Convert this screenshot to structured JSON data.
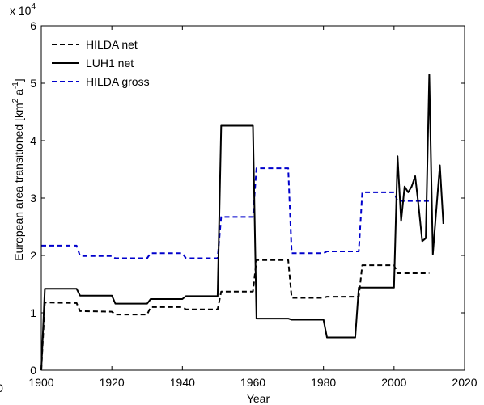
{
  "chart_data": {
    "type": "line",
    "title": "",
    "xlabel": "Year",
    "ylabel": "European area transitioned [km² a⁻¹]",
    "ylabel_main": "European area transitioned [km",
    "ylabel_sup1": "2",
    "ylabel_mid": " a",
    "ylabel_sup2": "-1",
    "ylabel_end": "]",
    "exponent_base": "x 10",
    "exponent_power": "4",
    "xlim": [
      1900,
      2020
    ],
    "ylim": [
      0,
      60000
    ],
    "x_ticks": [
      1900,
      1920,
      1940,
      1960,
      1980,
      2000,
      2020
    ],
    "x_tick_labels": [
      "1900",
      "1920",
      "1940",
      "1960",
      "1980",
      "2000",
      "2020"
    ],
    "y_ticks": [
      0,
      10000,
      20000,
      30000,
      40000,
      50000,
      60000
    ],
    "y_tick_labels": [
      "0",
      "1",
      "2",
      "3",
      "4",
      "5",
      "6"
    ],
    "left_edge_label": "0",
    "grid": false,
    "legend_position": "top-left",
    "series": [
      {
        "name": "HILDA net",
        "color": "#000000",
        "style": "dashed",
        "x": [
          1900,
          1901,
          1910,
          1911,
          1920,
          1921,
          1930,
          1931,
          1940,
          1941,
          1950,
          1951,
          1960,
          1961,
          1970,
          1971,
          1980,
          1981,
          1990,
          1991,
          2000,
          2001,
          2010
        ],
        "y": [
          0,
          11800,
          11700,
          10300,
          10200,
          9700,
          9700,
          11000,
          11000,
          10600,
          10600,
          13700,
          13700,
          19200,
          19200,
          12600,
          12600,
          12800,
          12800,
          18300,
          18300,
          16900,
          16900
        ]
      },
      {
        "name": "LUH1 net",
        "color": "#000000",
        "style": "solid",
        "x": [
          1900,
          1901,
          1910,
          1911,
          1920,
          1921,
          1930,
          1931,
          1940,
          1941,
          1950,
          1951,
          1960,
          1961,
          1970,
          1971,
          1980,
          1981,
          1989,
          1990,
          1999,
          2000,
          2001,
          2002,
          2003,
          2004,
          2005,
          2006,
          2007,
          2008,
          2009,
          2010,
          2011,
          2012,
          2013,
          2014
        ],
        "y": [
          0,
          14200,
          14200,
          13000,
          13000,
          11600,
          11600,
          12400,
          12400,
          12900,
          12900,
          42600,
          42600,
          9000,
          9000,
          8800,
          8800,
          5700,
          5700,
          14400,
          14400,
          14400,
          37300,
          26000,
          32000,
          31000,
          32000,
          33800,
          28500,
          22500,
          23000,
          51500,
          20200,
          28000,
          35700,
          25500
        ]
      },
      {
        "name": "HILDA gross",
        "color": "#0000cc",
        "style": "dashed",
        "x": [
          1900,
          1910,
          1911,
          1920,
          1921,
          1930,
          1931,
          1940,
          1941,
          1950,
          1951,
          1960,
          1961,
          1970,
          1971,
          1980,
          1981,
          1990,
          1991,
          2000,
          2001,
          2010
        ],
        "y": [
          21700,
          21700,
          19900,
          19900,
          19500,
          19500,
          20400,
          20400,
          19500,
          19500,
          26700,
          26700,
          35200,
          35200,
          20400,
          20400,
          20700,
          20700,
          31000,
          31000,
          29500,
          29500
        ]
      }
    ]
  }
}
